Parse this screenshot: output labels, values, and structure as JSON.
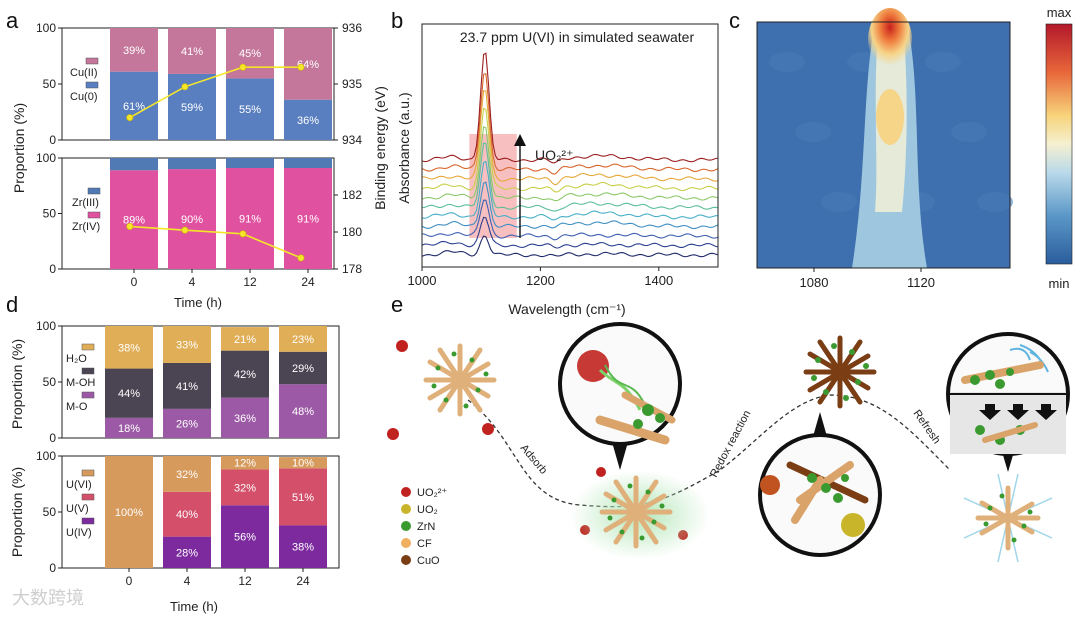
{
  "panel_labels": {
    "a": "a",
    "b": "b",
    "c": "c",
    "d": "d",
    "e": "e"
  },
  "chart_data": [
    {
      "id": "a-top",
      "type": "bar",
      "stacked": true,
      "categories": [
        "0",
        "4",
        "12",
        "24"
      ],
      "ylabel": "Proportion (%)",
      "y2label": "Binding energy (eV)",
      "ylim": [
        0,
        100
      ],
      "y2lim": [
        934,
        936
      ],
      "series": [
        {
          "name": "Cu(0)",
          "values": [
            61,
            59,
            55,
            36
          ],
          "labels": [
            "61%",
            "59%",
            "55%",
            "36%"
          ],
          "color": "#5a7fc0"
        },
        {
          "name": "Cu(II)",
          "values": [
            39,
            41,
            45,
            64
          ],
          "labels": [
            "39%",
            "41%",
            "45%",
            "64%"
          ],
          "color": "#c4779a"
        }
      ],
      "line": {
        "name": "binding energy",
        "x": [
          0.1,
          1.05,
          2.05,
          3.05
        ],
        "values": [
          934.4,
          934.95,
          935.3,
          935.3
        ],
        "color": "#f5e62a"
      },
      "y_ticks": [
        "0",
        "50",
        "100"
      ],
      "y2_ticks": [
        "934",
        "935",
        "936"
      ]
    },
    {
      "id": "a-bottom",
      "type": "bar",
      "stacked": true,
      "categories": [
        "0",
        "4",
        "12",
        "24"
      ],
      "xlabel": "Time (h)",
      "ylim": [
        0,
        100
      ],
      "y2lim": [
        178,
        184
      ],
      "series": [
        {
          "name": "Zr(IV)",
          "values": [
            89,
            90,
            91,
            91
          ],
          "labels": [
            "89%",
            "90%",
            "91%",
            "91%"
          ],
          "color": "#e0529f"
        },
        {
          "name": "Zr(III)",
          "values": [
            11,
            10,
            9,
            9
          ],
          "labels": [
            "",
            "",
            "",
            ""
          ],
          "color": "#4f7ab3"
        }
      ],
      "line": {
        "name": "binding energy",
        "x": [
          0.1,
          1.05,
          2.05,
          3.05
        ],
        "values": [
          180.3,
          180.1,
          179.9,
          178.6
        ],
        "color": "#f5e62a"
      },
      "y_ticks": [
        "0",
        "50",
        "100"
      ],
      "y2_ticks": [
        "178",
        "180",
        "182"
      ]
    },
    {
      "id": "b",
      "type": "line",
      "title": "23.7 ppm U(VI) in simulated seawater",
      "xlabel": "Wavelength (cm⁻¹)",
      "ylabel": "Absorbance (a.u.)",
      "xlim": [
        1000,
        1500
      ],
      "x_ticks": [
        "1000",
        "1200",
        "1400"
      ],
      "arrow_label": "UO₂²⁺",
      "series_count": 11
    },
    {
      "id": "c",
      "type": "heatmap",
      "x_ticks": [
        "1080",
        "1120"
      ],
      "colorbar_max": "max",
      "colorbar_min": "min"
    },
    {
      "id": "d-top",
      "type": "bar",
      "stacked": true,
      "categories": [
        "0",
        "4",
        "12",
        "24"
      ],
      "ylabel": "Proportion (%)",
      "ylim": [
        0,
        100
      ],
      "series": [
        {
          "name": "M-O",
          "values": [
            18,
            26,
            36,
            48
          ],
          "labels": [
            "18%",
            "26%",
            "36%",
            "48%"
          ],
          "color": "#9c5aa6"
        },
        {
          "name": "M-OH",
          "values": [
            44,
            41,
            42,
            29
          ],
          "labels": [
            "44%",
            "41%",
            "42%",
            "29%"
          ],
          "color": "#4b4453"
        },
        {
          "name": "H₂O",
          "values": [
            38,
            33,
            21,
            23
          ],
          "labels": [
            "38%",
            "33%",
            "21%",
            "23%"
          ],
          "color": "#e0ae57"
        }
      ],
      "y_ticks": [
        "0",
        "50",
        "100"
      ]
    },
    {
      "id": "d-bottom",
      "type": "bar",
      "stacked": true,
      "categories": [
        "0",
        "4",
        "12",
        "24"
      ],
      "xlabel": "Time (h)",
      "ylabel": "Proportion (%)",
      "ylim": [
        0,
        100
      ],
      "series": [
        {
          "name": "U(IV)",
          "values": [
            0,
            28,
            56,
            38
          ],
          "labels": [
            "",
            "28%",
            "56%",
            "38%"
          ],
          "color": "#7c2a9e"
        },
        {
          "name": "U(V)",
          "values": [
            0,
            40,
            32,
            51
          ],
          "labels": [
            "",
            "40%",
            "32%",
            "51%"
          ],
          "color": "#d4506a"
        },
        {
          "name": "U(VI)",
          "values": [
            100,
            32,
            12,
            10
          ],
          "labels": [
            "100%",
            "32%",
            "12%",
            "10%"
          ],
          "color": "#d69a5c"
        }
      ],
      "y_ticks": [
        "0",
        "50",
        "100"
      ]
    }
  ],
  "panel_e": {
    "legend": [
      {
        "label": "UO₂²⁺",
        "color": "#c0231f"
      },
      {
        "label": "UO₂",
        "color": "#c9b52a"
      },
      {
        "label": "ZrN",
        "color": "#3a9a30"
      },
      {
        "label": "CF",
        "color": "#f0b060"
      },
      {
        "label": "CuO",
        "color": "#7a3d14"
      }
    ],
    "steps": [
      "Adsorb",
      "Redox reaction",
      "Refresh"
    ]
  },
  "watermark": "大数跨境"
}
